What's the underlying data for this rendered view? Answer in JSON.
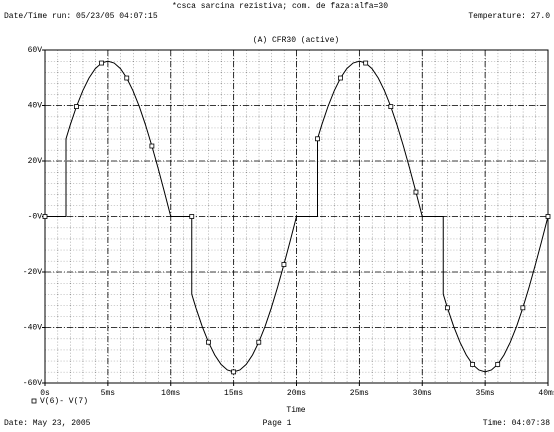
{
  "chart_data": {
    "type": "line",
    "title": "*csca sarcina rezistiva; com. de faza:alfa=30",
    "run_info": "Date/Time run: 05/23/05 04:07:15",
    "temperature": "Temperature: 27.0",
    "plot_label": "(A) CFR30 (active)",
    "x_label": "Time",
    "footer_date": "Date: May 23, 2005",
    "footer_page": "Page 1",
    "footer_time": "Time: 04:07:38",
    "xlim": [
      0,
      40
    ],
    "ylim": [
      -60,
      60
    ],
    "xticks": [
      {
        "value": 0,
        "label": "0s"
      },
      {
        "value": 5,
        "label": "5ms"
      },
      {
        "value": 10,
        "label": "10ms"
      },
      {
        "value": 15,
        "label": "15ms"
      },
      {
        "value": 20,
        "label": "20ms"
      },
      {
        "value": 25,
        "label": "25ms"
      },
      {
        "value": 30,
        "label": "30ms"
      },
      {
        "value": 35,
        "label": "35ms"
      },
      {
        "value": 40,
        "label": "40ms"
      }
    ],
    "yticks": [
      {
        "value": -60,
        "label": "-60V"
      },
      {
        "value": -40,
        "label": "-40V"
      },
      {
        "value": -20,
        "label": "-20V"
      },
      {
        "value": 0,
        "label": "-0V"
      },
      {
        "value": 20,
        "label": "20V"
      },
      {
        "value": 40,
        "label": "40V"
      },
      {
        "value": 60,
        "label": "60V"
      }
    ],
    "grid": true,
    "series": [
      {
        "name": "V(6)- V(7)",
        "color": "#000000",
        "x": [
          0,
          1.67,
          1.67,
          2,
          2.5,
          3,
          3.5,
          4,
          4.5,
          5,
          5.5,
          6,
          6.5,
          7,
          7.5,
          8,
          8.5,
          9,
          9.5,
          10,
          11.67,
          11.67,
          12,
          12.5,
          13,
          13.5,
          14,
          14.5,
          15,
          15.5,
          16,
          16.5,
          17,
          17.5,
          18,
          18.5,
          19,
          19.5,
          20,
          21.67,
          21.67,
          22,
          22.5,
          23,
          23.5,
          24,
          24.5,
          25,
          25.5,
          26,
          26.5,
          27,
          27.5,
          28,
          28.5,
          29,
          29.5,
          30,
          31.67,
          31.67,
          32,
          32.5,
          33,
          33.5,
          34,
          34.5,
          35,
          35.5,
          36,
          36.5,
          37,
          37.5,
          38,
          38.5,
          39,
          39.5,
          40
        ],
        "values": [
          0,
          0,
          28,
          32.9,
          39.6,
          45.3,
          49.9,
          53.3,
          55.3,
          56,
          55.3,
          53.3,
          49.9,
          45.3,
          39.6,
          32.9,
          25.4,
          17.3,
          8.8,
          0,
          0,
          -28,
          -32.9,
          -39.6,
          -45.3,
          -49.9,
          -53.3,
          -55.3,
          -56,
          -55.3,
          -53.3,
          -49.9,
          -45.3,
          -39.6,
          -32.9,
          -25.4,
          -17.3,
          -8.8,
          0,
          0,
          28,
          32.9,
          39.6,
          45.3,
          49.9,
          53.3,
          55.3,
          56,
          55.3,
          53.3,
          49.9,
          45.3,
          39.6,
          32.9,
          25.4,
          17.3,
          8.8,
          0,
          0,
          -28,
          -32.9,
          -39.6,
          -45.3,
          -49.9,
          -53.3,
          -55.3,
          -56,
          -55.3,
          -53.3,
          -49.9,
          -45.3,
          -39.6,
          -32.9,
          -25.4,
          -17.3,
          -8.8,
          0
        ]
      }
    ]
  }
}
